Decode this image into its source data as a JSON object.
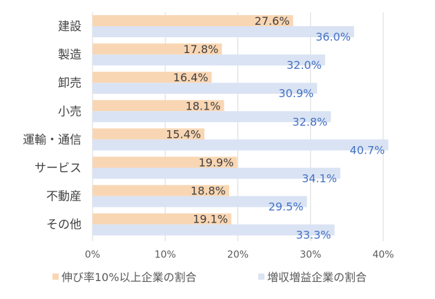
{
  "chart_data": {
    "type": "bar",
    "orientation": "horizontal",
    "title": "",
    "xlabel": "",
    "ylabel": "",
    "xlim": [
      0,
      40
    ],
    "x_ticks": [
      "0%",
      "10%",
      "20%",
      "30%",
      "40%"
    ],
    "grid": true,
    "legend_position": "bottom",
    "categories": [
      "建設",
      "製造",
      "卸売",
      "小売",
      "運輸・通信",
      "サービス",
      "不動産",
      "その他"
    ],
    "series": [
      {
        "name": "伸び率10%以上企業の割合",
        "color": "#F9D6B3",
        "label_color": "#404040",
        "values": [
          27.6,
          17.8,
          16.4,
          18.1,
          15.4,
          19.9,
          18.8,
          19.1
        ],
        "labels": [
          "27.6%",
          "17.8%",
          "16.4%",
          "18.1%",
          "15.4%",
          "19.9%",
          "18.8%",
          "19.1%"
        ]
      },
      {
        "name": "増収増益企業の割合",
        "color": "#DAE3F3",
        "label_color": "#4472C4",
        "values": [
          36.0,
          32.0,
          30.9,
          32.8,
          40.7,
          34.1,
          29.5,
          33.3
        ],
        "labels": [
          "36.0%",
          "32.0%",
          "30.9%",
          "32.8%",
          "40.7%",
          "34.1%",
          "29.5%",
          "33.3%"
        ]
      }
    ]
  }
}
